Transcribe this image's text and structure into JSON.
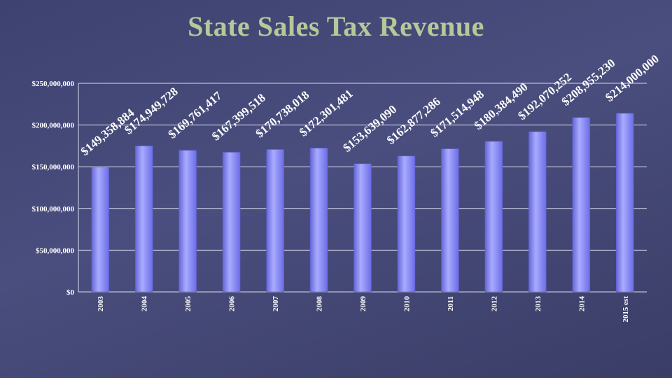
{
  "chart_data": {
    "type": "bar",
    "title": "State Sales Tax Revenue",
    "xlabel": "",
    "ylabel": "",
    "categories": [
      "2003",
      "2004",
      "2005",
      "2006",
      "2007",
      "2008",
      "2009",
      "2010",
      "2011",
      "2012",
      "2013",
      "2014",
      "2015 est"
    ],
    "values": [
      149358884,
      174949728,
      169761417,
      167399518,
      170738018,
      172301481,
      153639090,
      162877286,
      171514948,
      180384490,
      192070252,
      208955230,
      214000000
    ],
    "data_labels": [
      "$149,358,884",
      "$174,949,728",
      "$169,761,417",
      "$167,399,518",
      "$170,738,018",
      "$172,301,481",
      "$153,639,090",
      "$162,877,286",
      "$171,514,948",
      "$180,384,490",
      "$192,070,252",
      "$208,955,230",
      "$214,000,000"
    ],
    "y_ticks": [
      "$0",
      "$50,000,000",
      "$100,000,000",
      "$150,000,000",
      "$200,000,000",
      "$250,000,000"
    ],
    "ylim": [
      0,
      250000000
    ],
    "grid": true,
    "legend": "none",
    "colors": {
      "bar": "#7d7ef2",
      "bar_light": "#b6b8ff",
      "grid": "#dcdcf0",
      "title": "#b6c79a"
    }
  }
}
